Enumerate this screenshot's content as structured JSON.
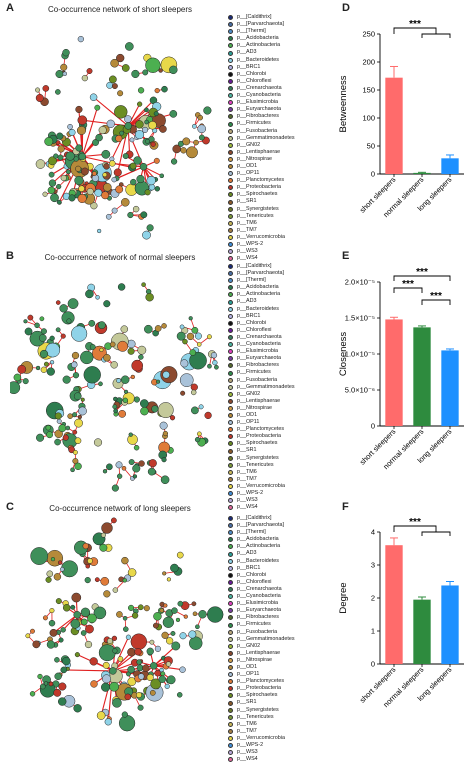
{
  "panels": {
    "a": {
      "letter": "A",
      "title": "Co-occurrence network of short sleepers"
    },
    "b": {
      "letter": "B",
      "title": "Co-occurrence network of normal sleepers"
    },
    "c": {
      "letter": "C",
      "title": "Co-occurrence network of long sleepers"
    },
    "d": {
      "letter": "D"
    },
    "e": {
      "letter": "E"
    },
    "f": {
      "letter": "F"
    }
  },
  "legend": {
    "items": [
      {
        "label": "p__[Caldithrix]",
        "color": "#1b2b7a"
      },
      {
        "label": "p__[Parvarchaeota]",
        "color": "#4a6fa5"
      },
      {
        "label": "p__[Thermi]",
        "color": "#4f8dc7"
      },
      {
        "label": "p__Acidobacteria",
        "color": "#2e7d4f"
      },
      {
        "label": "p__Actinobacteria",
        "color": "#4caf50"
      },
      {
        "label": "p__AD3",
        "color": "#2aa198"
      },
      {
        "label": "p__Bacteroidetes",
        "color": "#8fd3e8"
      },
      {
        "label": "p__BRC1",
        "color": "#b8b5e6"
      },
      {
        "label": "p__Chlorobi",
        "color": "#111111"
      },
      {
        "label": "p__Chloroflexi",
        "color": "#6a1b9a"
      },
      {
        "label": "p__Crenarchaeota",
        "color": "#3a7d5d"
      },
      {
        "label": "p__Cyanobacteria",
        "color": "#4bb6a0"
      },
      {
        "label": "p__Elusimicrobia",
        "color": "#e040c0"
      },
      {
        "label": "p__Euryarchaeota",
        "color": "#7b3fa0"
      },
      {
        "label": "p__Fibrobacteres",
        "color": "#556b2f"
      },
      {
        "label": "p__Firmicutes",
        "color": "#2f8f4e"
      },
      {
        "label": "p__Fusobacteria",
        "color": "#b8a77c"
      },
      {
        "label": "p__Gemmatimonadetes",
        "color": "#c4c99a"
      },
      {
        "label": "p__GN02",
        "color": "#9dbb3c"
      },
      {
        "label": "p__Lentisphaerae",
        "color": "#8c4a2f"
      },
      {
        "label": "p__Nitrospirae",
        "color": "#d4a04c"
      },
      {
        "label": "p__OD1",
        "color": "#b58a3a"
      },
      {
        "label": "p__OP11",
        "color": "#a9c2d9"
      },
      {
        "label": "p__Planctomycetes",
        "color": "#e07b39"
      },
      {
        "label": "p__Proteobacteria",
        "color": "#c0392b"
      },
      {
        "label": "p__Spirochaetes",
        "color": "#6b8e23"
      },
      {
        "label": "p__SR1",
        "color": "#8b5a2b"
      },
      {
        "label": "p__Synergistetes",
        "color": "#6c7a2c"
      },
      {
        "label": "p__Tenericutes",
        "color": "#7c9a3a"
      },
      {
        "label": "p__TM6",
        "color": "#c9b85a"
      },
      {
        "label": "p__TM7",
        "color": "#a57f45"
      },
      {
        "label": "p__Verrucomicrobia",
        "color": "#e8d84a"
      },
      {
        "label": "p__WPS-2",
        "color": "#3f8fd9"
      },
      {
        "label": "p__WS3",
        "color": "#b9a8d9"
      },
      {
        "label": "p__WS4",
        "color": "#e06b9e"
      }
    ]
  },
  "chart_data": [
    {
      "type": "bar",
      "categories": [
        "short sleepers",
        "normal sleepers",
        "long sleepers"
      ],
      "values": [
        172,
        2,
        28
      ],
      "errors": [
        20,
        1,
        6
      ],
      "colors": [
        "#ff6b6b",
        "#2e8b3e",
        "#1e90ff"
      ],
      "ylabel": "Betweenness",
      "ylim": [
        0,
        250
      ],
      "yticks": [
        0,
        50,
        100,
        150,
        200,
        250
      ],
      "ytick_labels": [
        "0",
        "50",
        "100",
        "150",
        "200",
        "250"
      ],
      "significance": [
        {
          "label": "***",
          "from": 0,
          "to": [
            1,
            2
          ]
        }
      ]
    },
    {
      "type": "bar",
      "categories": [
        "short sleepers",
        "normal sleepers",
        "long sleepers"
      ],
      "values": [
        1.48e-05,
        1.37e-05,
        1.05e-05
      ],
      "errors": [
        3e-07,
        2e-07,
        2e-07
      ],
      "colors": [
        "#ff6b6b",
        "#2e8b3e",
        "#1e90ff"
      ],
      "ylabel": "Closeness",
      "ylim": [
        0,
        2e-05
      ],
      "yticks": [
        0,
        5e-06,
        1e-05,
        1.5e-05,
        2e-05
      ],
      "ytick_labels": [
        "0",
        "5.0×10⁻⁶",
        "1.0×10⁻⁵",
        "1.5×10⁻⁵",
        "2.0×10⁻⁵"
      ],
      "significance": [
        {
          "label": "***",
          "from": 0,
          "to": [
            2
          ]
        },
        {
          "label": "***",
          "from": 0,
          "to": [
            1
          ]
        },
        {
          "label": "***",
          "from": 1,
          "to": [
            2
          ]
        }
      ]
    },
    {
      "type": "bar",
      "categories": [
        "short sleepers",
        "normal sleepers",
        "long sleepers"
      ],
      "values": [
        3.6,
        1.95,
        2.38
      ],
      "errors": [
        0.22,
        0.08,
        0.12
      ],
      "colors": [
        "#ff6b6b",
        "#2e8b3e",
        "#1e90ff"
      ],
      "ylabel": "Degree",
      "ylim": [
        0,
        4
      ],
      "yticks": [
        0,
        1,
        2,
        3,
        4
      ],
      "ytick_labels": [
        "0",
        "1",
        "2",
        "3",
        "4"
      ],
      "significance": [
        {
          "label": "***",
          "from": 0,
          "to": [
            1,
            2
          ]
        }
      ]
    }
  ]
}
